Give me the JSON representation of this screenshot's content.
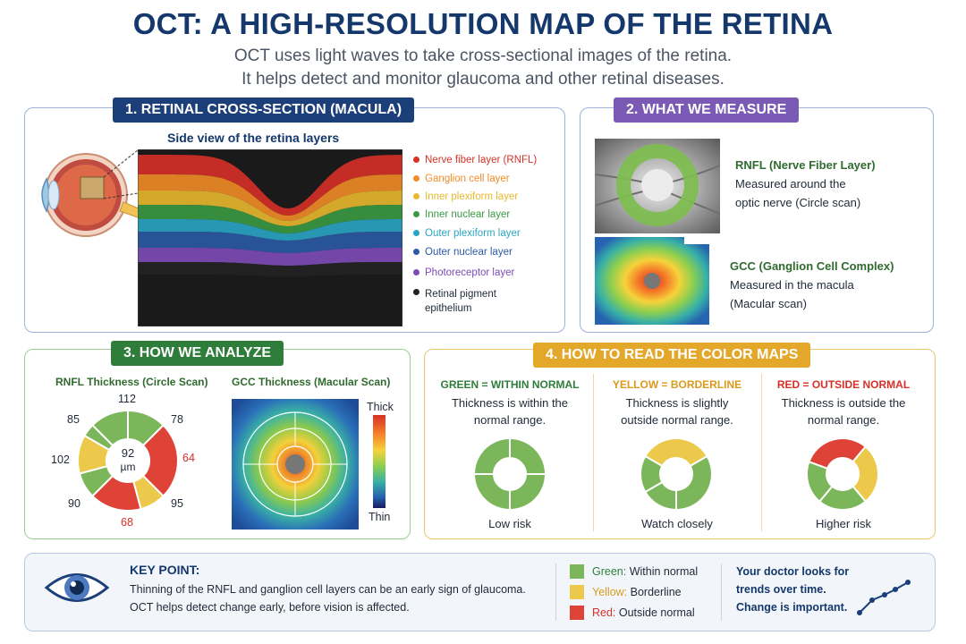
{
  "header": {
    "title": "OCT: A HIGH-RESOLUTION MAP OF THE RETINA",
    "subtitle_line1": "OCT uses light waves to take cross-sectional images of the retina.",
    "subtitle_line2": "It helps detect and monitor glaucoma and other retinal diseases."
  },
  "section1": {
    "tag": "1. RETINAL CROSS-SECTION (MACULA)",
    "caption": "Side view of the retina layers",
    "layers": [
      {
        "label": "Nerve fiber layer (RNFL)",
        "color": "#d73027"
      },
      {
        "label": "Ganglion cell layer",
        "color": "#f28c28"
      },
      {
        "label": "Inner plexiform layer",
        "color": "#e9b82d"
      },
      {
        "label": "Inner nuclear layer",
        "color": "#3a9a43"
      },
      {
        "label": "Outer plexiform layer",
        "color": "#2aa5c4"
      },
      {
        "label": "Outer nuclear layer",
        "color": "#2b5aa5"
      },
      {
        "label": "Photoreceptor layer",
        "color": "#7d4bb8"
      },
      {
        "label": "Retinal pigment epithelium",
        "color": "#222222"
      }
    ]
  },
  "section2": {
    "tag": "2. WHAT WE MEASURE",
    "rnfl_title": "RNFL (Nerve Fiber Layer)",
    "rnfl_line1": "Measured around the",
    "rnfl_line2": "optic nerve (Circle scan)",
    "gcc_title": "GCC (Ganglion Cell Complex)",
    "gcc_line1": "Measured in the macula",
    "gcc_line2": "(Macular scan)"
  },
  "section3": {
    "tag": "3. HOW WE ANALYZE",
    "rnfl_title": "RNFL Thickness (Circle Scan)",
    "gcc_title": "GCC Thickness (Macular Scan)",
    "center_value": "92",
    "center_unit": "µm",
    "sectors": [
      "112",
      "78",
      "64",
      "95",
      "68",
      "90",
      "102",
      "85"
    ],
    "scale_top": "Thick",
    "scale_bottom": "Thin"
  },
  "section4": {
    "tag": "4. HOW TO READ THE COLOR MAPS",
    "cols": [
      {
        "title": "GREEN = WITHIN NORMAL",
        "line1": "Thickness is within the",
        "line2": "normal range.",
        "risk": "Low risk"
      },
      {
        "title": "YELLOW = BORDERLINE",
        "line1": "Thickness is slightly",
        "line2": "outside normal range.",
        "risk": "Watch closely"
      },
      {
        "title": "RED = OUTSIDE NORMAL",
        "line1": "Thickness is outside the",
        "line2": "normal range.",
        "risk": "Higher risk"
      }
    ]
  },
  "footer": {
    "key_title": "KEY POINT:",
    "key_line1": "Thinning of the RNFL and ganglion cell layers can be an early sign of glaucoma.",
    "key_line2": "OCT helps detect change early, before vision is affected.",
    "legend": [
      {
        "name": "Green:",
        "desc": " Within normal"
      },
      {
        "name": "Yellow:",
        "desc": " Borderline"
      },
      {
        "name": "Red:",
        "desc": " Outside normal"
      }
    ],
    "trend_line1": "Your doctor looks for",
    "trend_line2": "trends over time.",
    "trend_line3": "Change is important."
  },
  "colors": {
    "navy": "#14386b",
    "tag1": "#1c3f7a",
    "tag2": "#7b5ab5",
    "tag3": "#2f7d3a",
    "tag4": "#e3a82a",
    "green": "#7cb65a",
    "yellow": "#ecc94b",
    "red": "#df4337"
  }
}
